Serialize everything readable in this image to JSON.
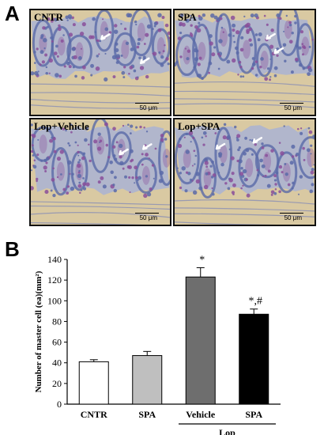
{
  "figure": {
    "panel_a_letter": "A",
    "panel_b_letter": "B"
  },
  "micrographs": [
    {
      "label": "CNTR",
      "scale": "50 μm"
    },
    {
      "label": "SPA",
      "scale": "50 μm"
    },
    {
      "label": "Lop+Vehicle",
      "scale": "50 μm"
    },
    {
      "label": "Lop+SPA",
      "scale": "50 μm"
    }
  ],
  "colors": {
    "micro_bg": "#d9c9a2",
    "tissue_blue": "#5a6aa8",
    "tissue_purple": "#8a4f9a",
    "bar_cntr": "#ffffff",
    "bar_spa": "#bfbfbf",
    "bar_vehicle": "#6e6e6e",
    "bar_lop_spa": "#000000"
  },
  "chart_data": {
    "type": "bar",
    "ylabel": "Number of master cell (ea)(mm²)",
    "ylim": [
      0,
      140
    ],
    "yticks": [
      "0",
      "20",
      "40",
      "60",
      "80",
      "100",
      "120",
      "140"
    ],
    "categories": [
      "CNTR",
      "SPA",
      "Vehicle",
      "SPA"
    ],
    "values": [
      41,
      47,
      123,
      87
    ],
    "errors": [
      2,
      4,
      9,
      5
    ],
    "annotations": [
      "",
      "",
      "*",
      "*,#"
    ],
    "group_label": "Lop",
    "group_span": [
      2,
      3
    ]
  }
}
